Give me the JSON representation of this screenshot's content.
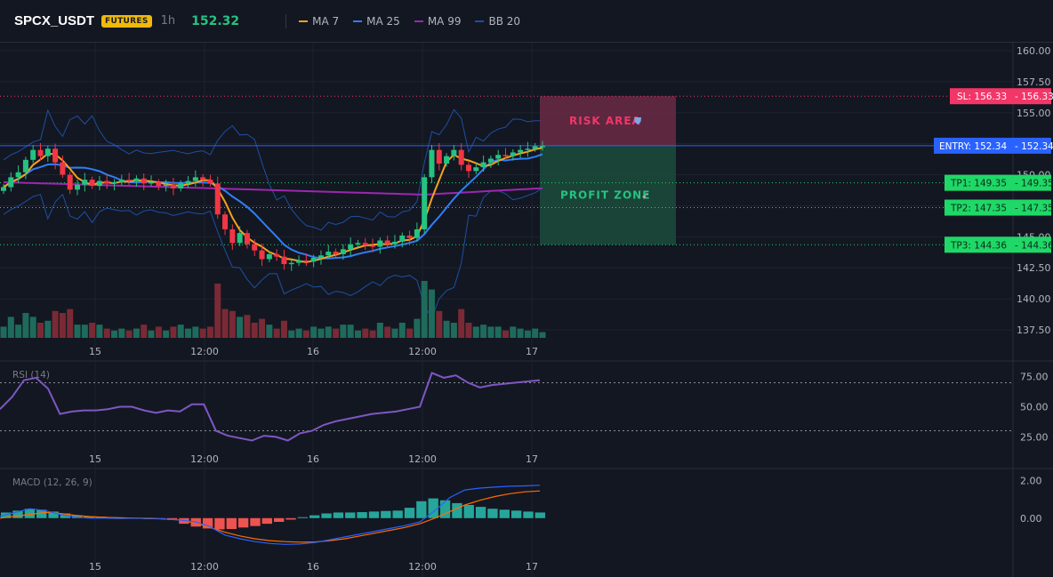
{
  "header": {
    "symbol": "SPCX_USDT",
    "badge": "FUTURES",
    "timeframe": "1h",
    "last_price": "152.32",
    "legend": [
      {
        "label": "MA 7",
        "color": "#f7a21b"
      },
      {
        "label": "MA 25",
        "color": "#2f7ff6"
      },
      {
        "label": "MA 99",
        "color": "#9c27b0"
      },
      {
        "label": "BB 20",
        "color": "#1e4fa0"
      }
    ]
  },
  "levels": {
    "sl": {
      "label": "SL: 156.33",
      "value": "156.33",
      "price": 156.33,
      "color": "#f23668"
    },
    "entry": {
      "label": "ENTRY: 152.34",
      "value": "152.34",
      "price": 152.34,
      "color": "#2962ff"
    },
    "tp1": {
      "label": "TP1: 149.35",
      "value": "149.35",
      "price": 149.35,
      "color": "#1fd867"
    },
    "tp2": {
      "label": "TP2: 147.35",
      "value": "147.35",
      "price": 147.35,
      "color": "#1fd867"
    },
    "tp3": {
      "label": "TP3: 144.36",
      "value": "144.36",
      "price": 144.36,
      "color": "#1fd867"
    }
  },
  "zones": {
    "risk": {
      "label": "RISK AREA",
      "icon": "shield-icon"
    },
    "profit": {
      "label": "PROFIT ZONE",
      "icon": "rocket-icon"
    }
  },
  "chart_data": [
    {
      "type": "candlestick",
      "title": "SPCX_USDT 1h",
      "x_ticks": [
        "15",
        "12:00",
        "16",
        "12:00",
        "17"
      ],
      "ylim": [
        137.5,
        160.0
      ],
      "y_ticks": [
        "160.00",
        "157.50",
        "155.00",
        "152.50",
        "150.00",
        "147.50",
        "145.00",
        "142.50",
        "140.00",
        "137.50"
      ],
      "close": [
        149.0,
        149.8,
        150.2,
        151.2,
        152.0,
        151.5,
        152.1,
        151.0,
        150.0,
        148.8,
        149.2,
        149.6,
        149.1,
        149.5,
        149.3,
        149.4,
        149.6,
        149.5,
        149.7,
        149.3,
        149.4,
        149.1,
        149.2,
        148.9,
        149.3,
        149.5,
        149.8,
        149.6,
        149.3,
        146.8,
        145.6,
        144.5,
        145.3,
        144.4,
        143.9,
        143.2,
        143.6,
        143.4,
        142.8,
        142.9,
        143.1,
        143.0,
        143.3,
        143.5,
        143.8,
        143.6,
        144.0,
        144.4,
        144.5,
        144.3,
        144.2,
        144.7,
        144.4,
        144.6,
        145.1,
        144.9,
        145.6,
        149.8,
        152.0,
        150.9,
        151.5,
        152.0,
        150.8,
        150.3,
        150.6,
        151.0,
        151.3,
        151.6,
        151.5,
        151.8,
        152.0,
        152.1,
        152.3,
        152.32
      ],
      "volume_scale": "relative",
      "grid": true
    },
    {
      "type": "line",
      "title": "RSI (14)",
      "ylim": [
        15,
        85
      ],
      "y_ticks": [
        "75.00",
        "50.00",
        "25.00"
      ],
      "bands": [
        70,
        30
      ],
      "values": [
        48,
        58,
        72,
        74,
        65,
        44,
        46,
        47,
        47,
        48,
        50,
        50,
        47,
        45,
        47,
        46,
        52,
        52,
        30,
        26,
        24,
        22,
        26,
        25,
        22,
        28,
        30,
        35,
        38,
        40,
        42,
        44,
        45,
        46,
        48,
        50,
        78,
        74,
        76,
        70,
        66,
        68,
        69,
        70,
        71,
        72
      ],
      "grid": true
    },
    {
      "type": "macd",
      "title": "MACD (12, 26, 9)",
      "ylim": [
        -2.0,
        2.5
      ],
      "y_ticks": [
        "2.00",
        "0.00"
      ],
      "histogram": [
        0.3,
        0.4,
        0.5,
        0.45,
        0.35,
        0.25,
        0.15,
        0.1,
        0.08,
        0.05,
        0.03,
        0.02,
        0.0,
        -0.05,
        -0.1,
        -0.3,
        -0.45,
        -0.55,
        -0.6,
        -0.58,
        -0.5,
        -0.42,
        -0.3,
        -0.2,
        -0.08,
        0.05,
        0.15,
        0.25,
        0.3,
        0.3,
        0.32,
        0.35,
        0.38,
        0.4,
        0.55,
        0.9,
        1.05,
        0.95,
        0.8,
        0.7,
        0.6,
        0.5,
        0.45,
        0.4,
        0.35,
        0.3
      ],
      "macd_line": [
        0.1,
        0.3,
        0.5,
        0.4,
        0.2,
        0.05,
        0.0,
        0.0,
        -0.02,
        0.0,
        0.0,
        -0.05,
        -0.1,
        -0.2,
        -0.45,
        -0.9,
        -1.1,
        -1.25,
        -1.35,
        -1.4,
        -1.38,
        -1.3,
        -1.15,
        -1.0,
        -0.85,
        -0.7,
        -0.55,
        -0.4,
        -0.2,
        0.4,
        1.1,
        1.5,
        1.6,
        1.65,
        1.7,
        1.72,
        1.75
      ],
      "signal_line": [
        0.0,
        0.1,
        0.2,
        0.3,
        0.25,
        0.15,
        0.08,
        0.04,
        0.02,
        0.0,
        -0.02,
        -0.05,
        -0.1,
        -0.25,
        -0.5,
        -0.75,
        -0.95,
        -1.1,
        -1.2,
        -1.25,
        -1.28,
        -1.27,
        -1.2,
        -1.1,
        -0.95,
        -0.8,
        -0.65,
        -0.5,
        -0.3,
        0.0,
        0.35,
        0.7,
        0.95,
        1.15,
        1.3,
        1.4,
        1.45
      ],
      "grid": true
    }
  ]
}
